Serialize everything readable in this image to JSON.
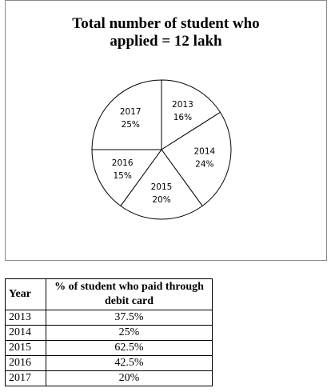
{
  "chart_data": {
    "type": "pie",
    "title": "Total number of student who applied = 12 lakh",
    "categories": [
      "2013",
      "2014",
      "2015",
      "2016",
      "2017"
    ],
    "values": [
      16,
      24,
      20,
      15,
      25
    ],
    "value_labels": [
      "16%",
      "24%",
      "20%",
      "15%",
      "25%"
    ],
    "color": "#ffffff"
  },
  "table": {
    "columns": [
      "Year",
      "% of student who paid through debit card"
    ],
    "rows": [
      [
        "2013",
        "37.5%"
      ],
      [
        "2014",
        "25%"
      ],
      [
        "2015",
        "62.5%"
      ],
      [
        "2016",
        "42.5%"
      ],
      [
        "2017",
        "20%"
      ]
    ]
  }
}
